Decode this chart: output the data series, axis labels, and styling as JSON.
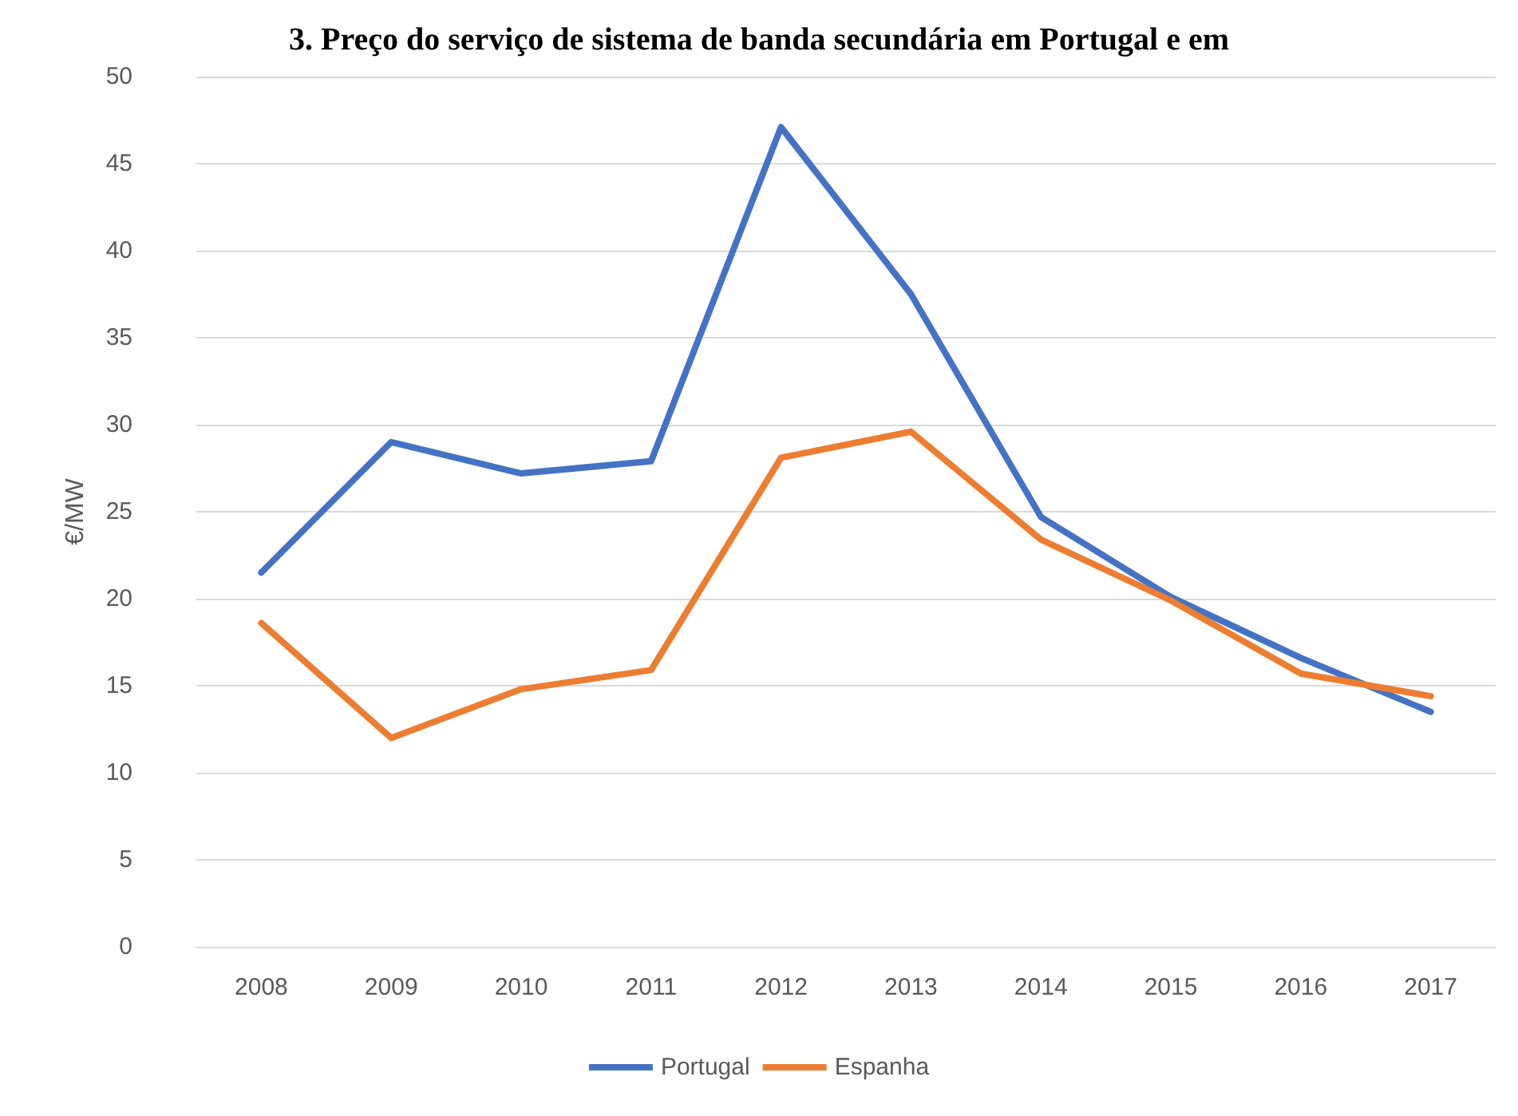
{
  "chart_data": {
    "type": "line",
    "title": "3. Preço do serviço de sistema de banda secundária em Portugal e em",
    "ylabel": "€/MW",
    "categories": [
      "2008",
      "2009",
      "2010",
      "2011",
      "2012",
      "2013",
      "2014",
      "2015",
      "2016",
      "2017"
    ],
    "series": [
      {
        "name": "Portugal",
        "color": "#4472c4",
        "values": [
          21.5,
          29.0,
          27.2,
          27.9,
          47.1,
          37.5,
          24.7,
          20.1,
          16.6,
          13.5
        ]
      },
      {
        "name": "Espanha",
        "color": "#ed7d31",
        "values": [
          18.6,
          12.0,
          14.8,
          15.9,
          28.1,
          29.6,
          23.4,
          19.9,
          15.7,
          14.4
        ]
      }
    ],
    "ylim": [
      0,
      50
    ],
    "yticks": [
      0,
      5,
      10,
      15,
      20,
      25,
      30,
      35,
      40,
      45,
      50
    ],
    "grid": "y",
    "legend": "bottom",
    "marker": "none",
    "line_style": "solid"
  }
}
